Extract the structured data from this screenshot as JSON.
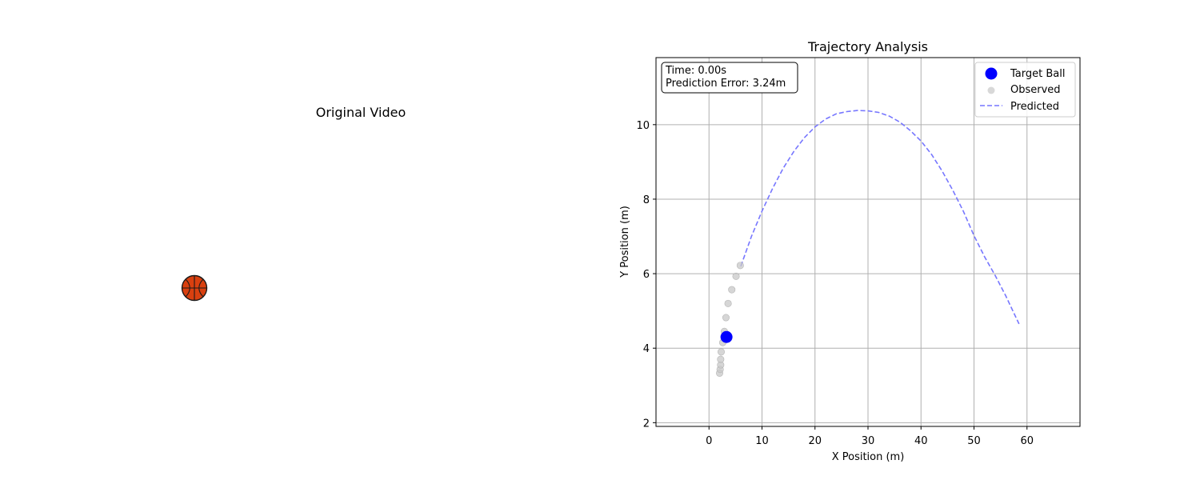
{
  "left_panel": {
    "title": "Original Video",
    "ball_icon": "basketball-icon"
  },
  "chart_data": {
    "type": "scatter",
    "title": "Trajectory Analysis",
    "xlabel": "X Position (m)",
    "ylabel": "Y Position (m)",
    "xlim": [
      -10,
      70
    ],
    "ylim": [
      1.9,
      11.8
    ],
    "xticks": [
      0,
      10,
      20,
      30,
      40,
      50,
      60
    ],
    "yticks": [
      2,
      4,
      6,
      8,
      10
    ],
    "grid": true,
    "legend_position": "top-right",
    "info_box": {
      "time": "Time: 0.00s",
      "error": "Prediction Error: 3.24m"
    },
    "series": [
      {
        "name": "Target Ball",
        "kind": "marker",
        "color": "#0000ff",
        "points": [
          [
            3.3,
            4.3
          ]
        ]
      },
      {
        "name": "Observed",
        "kind": "scatter",
        "color": "#c8c8c8",
        "points": [
          [
            2.0,
            3.33
          ],
          [
            2.1,
            3.43
          ],
          [
            2.2,
            3.55
          ],
          [
            2.2,
            3.7
          ],
          [
            2.3,
            3.9
          ],
          [
            2.6,
            4.15
          ],
          [
            2.9,
            4.45
          ],
          [
            3.2,
            4.82
          ],
          [
            3.6,
            5.2
          ],
          [
            4.3,
            5.57
          ],
          [
            5.1,
            5.93
          ],
          [
            5.9,
            6.22
          ]
        ]
      },
      {
        "name": "Predicted",
        "kind": "dashed-line",
        "color": "#7777ff",
        "points": [
          [
            6.0,
            6.2
          ],
          [
            8.0,
            7.0
          ],
          [
            10.0,
            7.68
          ],
          [
            12.0,
            8.29
          ],
          [
            14.0,
            8.83
          ],
          [
            16.0,
            9.28
          ],
          [
            18.0,
            9.65
          ],
          [
            20.0,
            9.94
          ],
          [
            22.0,
            10.15
          ],
          [
            24.0,
            10.29
          ],
          [
            26.0,
            10.35
          ],
          [
            28.0,
            10.38
          ],
          [
            30.0,
            10.37
          ],
          [
            32.0,
            10.33
          ],
          [
            34.0,
            10.23
          ],
          [
            36.0,
            10.07
          ],
          [
            38.0,
            9.84
          ],
          [
            40.0,
            9.56
          ],
          [
            42.0,
            9.2
          ],
          [
            44.0,
            8.75
          ],
          [
            46.0,
            8.24
          ],
          [
            48.0,
            7.67
          ],
          [
            50.0,
            7.02
          ],
          [
            52.0,
            6.45
          ],
          [
            54.0,
            5.95
          ],
          [
            56.0,
            5.4
          ],
          [
            58.0,
            4.8
          ],
          [
            58.5,
            4.65
          ]
        ]
      }
    ]
  }
}
